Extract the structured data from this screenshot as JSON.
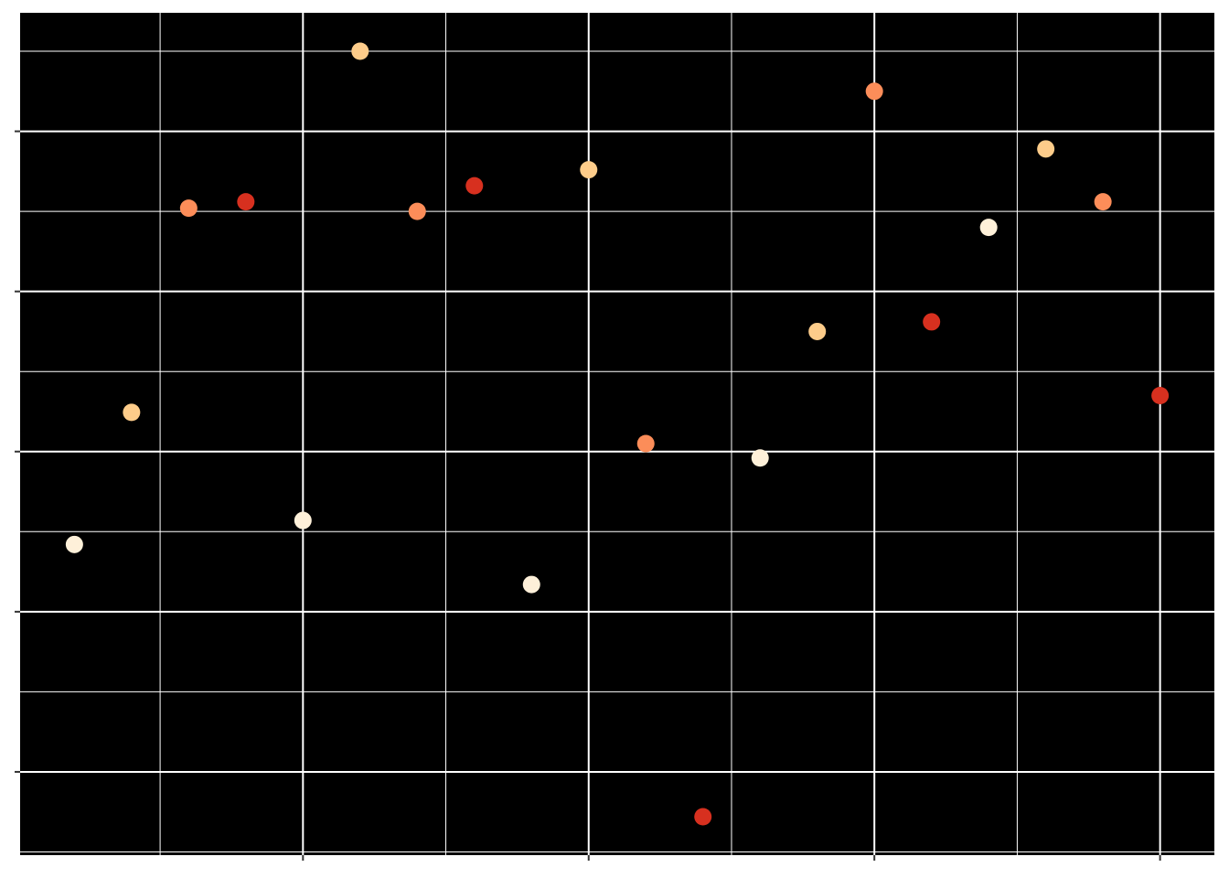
{
  "chart_data": {
    "type": "scatter",
    "x": [
      1,
      2,
      3,
      4,
      5,
      6,
      7,
      8,
      9,
      10,
      11,
      12,
      13,
      14,
      15,
      16,
      17,
      18,
      19,
      20
    ],
    "series": [
      {
        "values": [
          -0.58,
          0.245,
          1.52,
          1.56,
          -0.43,
          2.5,
          1.5,
          1.66,
          -0.83,
          1.76,
          0.05,
          -2.28,
          -0.04,
          0.75,
          2.25,
          0.81,
          1.4,
          1.89,
          1.56,
          0.35
        ],
        "colors": [
          "#fef0d9",
          "#fdcc8a",
          "#fc8d59",
          "#d7301f",
          "#fef0d9",
          "#fdcc8a",
          "#fc8d59",
          "#d7301f",
          "#fef0d9",
          "#fdcc8a",
          "#fc8d59",
          "#d7301f",
          "#fef0d9",
          "#fdcc8a",
          "#fc8d59",
          "#d7301f",
          "#fef0d9",
          "#fdcc8a",
          "#fc8d59",
          "#d7301f"
        ]
      }
    ],
    "xlim": [
      0.05,
      20.95
    ],
    "ylim": [
      -2.52,
      2.74
    ],
    "xticks": [
      5,
      10,
      15,
      20
    ],
    "yticks": [
      -2,
      -1,
      0,
      1,
      2
    ],
    "xminorticks": [
      2.5,
      7.5,
      12.5,
      17.5
    ],
    "yminorticks": [
      -2.5,
      -1.5,
      -0.5,
      0.5,
      1.5,
      2.5
    ],
    "grid": true,
    "panel_color": "#000000",
    "grid_color": "#ffffff"
  }
}
